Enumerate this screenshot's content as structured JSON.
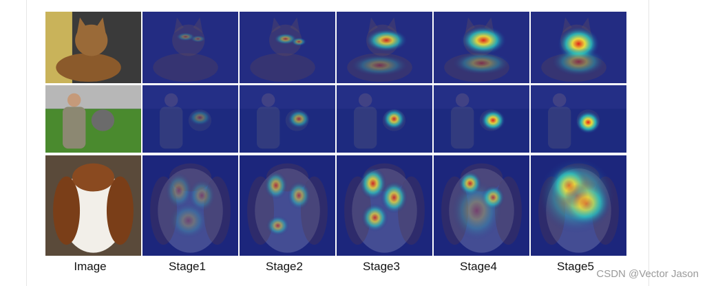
{
  "columns": [
    "Image",
    "Stage1",
    "Stage2",
    "Stage3",
    "Stage4",
    "Stage5"
  ],
  "rows": [
    {
      "subject": "cat",
      "label": "cat"
    },
    {
      "subject": "person-and-sheep",
      "label": "person-and-sheep"
    },
    {
      "subject": "basset-puppy",
      "label": "basset-puppy"
    }
  ],
  "watermark": "CSDN @Vector Jason",
  "colors": {
    "heat_low": "#1b2a8c",
    "heat_mid": "#27d6c8",
    "heat_high": "#f3e23a",
    "heat_peak": "#e0221a"
  }
}
